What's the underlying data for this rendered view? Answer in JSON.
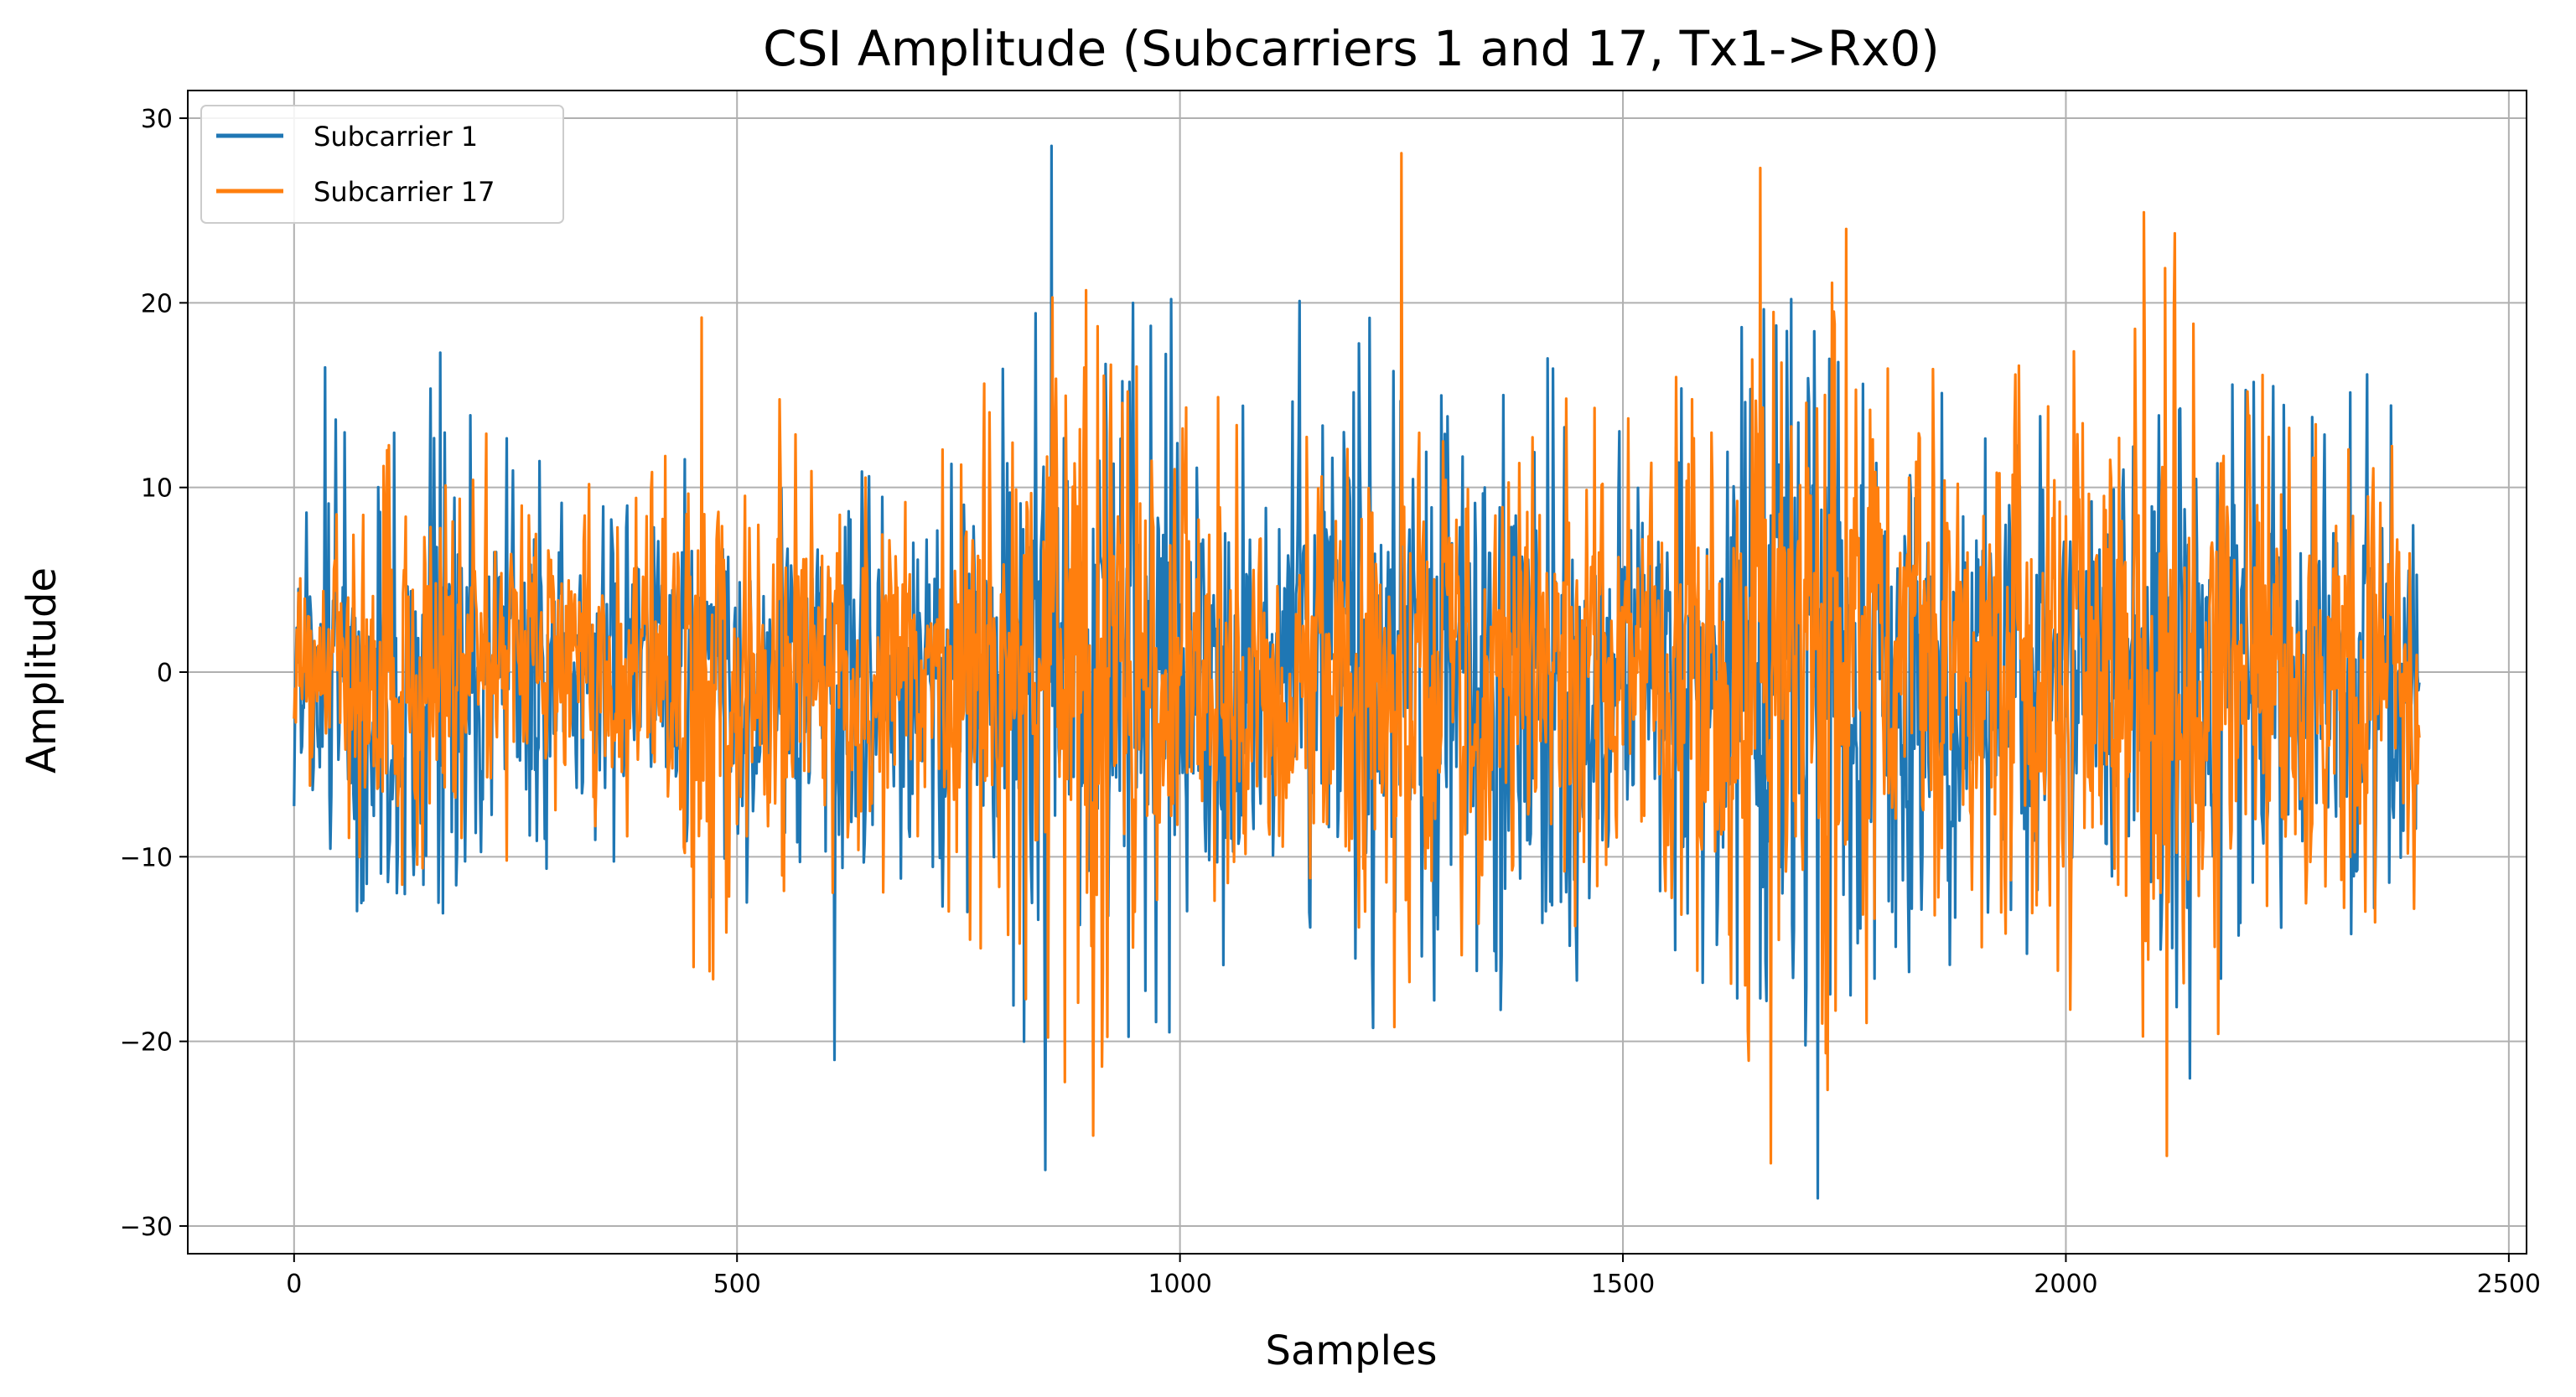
{
  "chart_data": {
    "type": "line",
    "title": "CSI Amplitude (Subcarriers 1 and 17, Tx1->Rx0)",
    "xlabel": "Samples",
    "ylabel": "Amplitude",
    "xlim": [
      -120,
      2520
    ],
    "ylim": [
      -31.5,
      31.5
    ],
    "xticks": [
      0,
      500,
      1000,
      1500,
      2000,
      2500
    ],
    "yticks": [
      -30,
      -20,
      -10,
      0,
      10,
      20,
      30
    ],
    "ytick_labels": [
      "−30",
      "−20",
      "−10",
      "0",
      "10",
      "20",
      "30"
    ],
    "grid": true,
    "legend_position": "top-left",
    "sample_count": 2400,
    "series": [
      {
        "name": "Subcarrier 1",
        "color": "#1f77b4",
        "envelope": [
          [
            0,
            9
          ],
          [
            50,
            14
          ],
          [
            100,
            11
          ],
          [
            150,
            15
          ],
          [
            200,
            13
          ],
          [
            250,
            12
          ],
          [
            300,
            10
          ],
          [
            400,
            10
          ],
          [
            500,
            12
          ],
          [
            600,
            10
          ],
          [
            700,
            11
          ],
          [
            800,
            15
          ],
          [
            855,
            28.5
          ],
          [
            900,
            18
          ],
          [
            990,
            20
          ],
          [
            1100,
            13
          ],
          [
            1200,
            18
          ],
          [
            1300,
            17
          ],
          [
            1400,
            17
          ],
          [
            1500,
            12
          ],
          [
            1600,
            17
          ],
          [
            1700,
            20
          ],
          [
            1800,
            17
          ],
          [
            1900,
            14
          ],
          [
            2000,
            15
          ],
          [
            2100,
            17
          ],
          [
            2200,
            15
          ],
          [
            2300,
            14
          ],
          [
            2400,
            13
          ]
        ],
        "extremes": [
          {
            "x": 855,
            "y": 28.5
          },
          {
            "x": 990,
            "y": 20.2
          },
          {
            "x": 1720,
            "y": -28.5
          },
          {
            "x": 610,
            "y": -21
          },
          {
            "x": 35,
            "y": 16.5
          },
          {
            "x": 165,
            "y": 17.3
          },
          {
            "x": 1135,
            "y": 20.1
          },
          {
            "x": 1690,
            "y": 20.2
          },
          {
            "x": 2140,
            "y": -22
          }
        ]
      },
      {
        "name": "Subcarrier 17",
        "color": "#ff7f0e",
        "envelope": [
          [
            0,
            7
          ],
          [
            50,
            10
          ],
          [
            100,
            12
          ],
          [
            150,
            13
          ],
          [
            200,
            12
          ],
          [
            250,
            12
          ],
          [
            300,
            9
          ],
          [
            400,
            12
          ],
          [
            460,
            17
          ],
          [
            500,
            15
          ],
          [
            600,
            12
          ],
          [
            700,
            11
          ],
          [
            800,
            16
          ],
          [
            900,
            21
          ],
          [
            1000,
            16
          ],
          [
            1100,
            11
          ],
          [
            1200,
            13
          ],
          [
            1250,
            19
          ],
          [
            1300,
            16
          ],
          [
            1400,
            15
          ],
          [
            1500,
            13
          ],
          [
            1600,
            17
          ],
          [
            1700,
            20
          ],
          [
            1800,
            18
          ],
          [
            1900,
            14
          ],
          [
            2000,
            17
          ],
          [
            2100,
            22
          ],
          [
            2200,
            17
          ],
          [
            2300,
            15
          ],
          [
            2400,
            13
          ]
        ],
        "extremes": [
          {
            "x": 1250,
            "y": 28.1
          },
          {
            "x": 1655,
            "y": 27.3
          },
          {
            "x": 1667,
            "y": -26.6
          },
          {
            "x": 2114,
            "y": -26.2
          },
          {
            "x": 902,
            "y": -25.1
          },
          {
            "x": 2088,
            "y": 24.9
          },
          {
            "x": 1752,
            "y": 24.0
          },
          {
            "x": 460,
            "y": 19.2
          },
          {
            "x": 870,
            "y": -22.2
          }
        ]
      }
    ]
  }
}
